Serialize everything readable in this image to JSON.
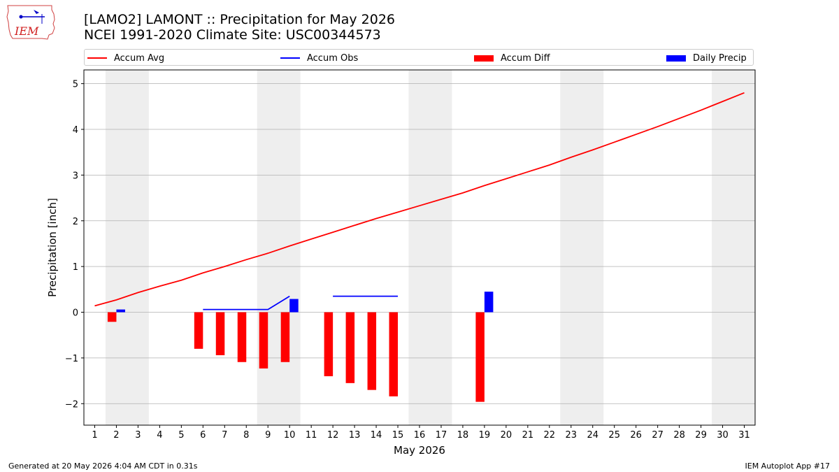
{
  "header": {
    "logo_text": "IEM",
    "title_line1": "[LAMO2] LAMONT :: Precipitation for May 2026",
    "title_line2": "NCEI 1991-2020 Climate Site: USC00344573"
  },
  "legend": {
    "placement": "top",
    "items": [
      {
        "label": "Accum Avg",
        "kind": "line",
        "color": "#ff0000"
      },
      {
        "label": "Accum Obs",
        "kind": "line",
        "color": "#0000ff"
      },
      {
        "label": "Accum Diff",
        "kind": "patch",
        "color": "#ff0000"
      },
      {
        "label": "Daily Precip",
        "kind": "patch",
        "color": "#0000ff"
      }
    ]
  },
  "footer": {
    "generated": "Generated at 20 May 2026 4:04 AM CDT in 0.31s",
    "app": "IEM Autoplot App #17"
  },
  "chart_data": {
    "type": "bar",
    "xlabel": "May 2026",
    "ylabel": "Precipitation [inch]",
    "xlim": [
      0.5,
      31.5
    ],
    "ylim": [
      -2.47,
      5.3
    ],
    "x_ticks": [
      1,
      2,
      3,
      4,
      5,
      6,
      7,
      8,
      9,
      10,
      11,
      12,
      13,
      14,
      15,
      16,
      17,
      18,
      19,
      20,
      21,
      22,
      23,
      24,
      25,
      26,
      27,
      28,
      29,
      30,
      31
    ],
    "y_ticks": [
      -2,
      -1,
      0,
      1,
      2,
      3,
      4,
      5
    ],
    "y_tick_labels": [
      "−2",
      "−1",
      "0",
      "1",
      "2",
      "3",
      "4",
      "5"
    ],
    "grid": "horizontal",
    "weekend_shading": [
      [
        1.5,
        3.5
      ],
      [
        8.5,
        10.5
      ],
      [
        15.5,
        17.5
      ],
      [
        22.5,
        24.5
      ],
      [
        29.5,
        31.5
      ]
    ],
    "colors": {
      "avg": "#ff0000",
      "obs": "#0000ff",
      "diff": "#ff0000",
      "daily": "#0000ff",
      "weekend": "#eeeeee",
      "grid": "#b0b0b0"
    },
    "series": [
      {
        "name": "Accum Avg",
        "type": "line",
        "x": [
          1,
          2,
          3,
          4,
          5,
          6,
          7,
          8,
          9,
          10,
          11,
          12,
          13,
          14,
          15,
          16,
          17,
          18,
          19,
          20,
          21,
          22,
          23,
          24,
          25,
          26,
          27,
          28,
          29,
          30,
          31
        ],
        "values": [
          0.14,
          0.27,
          0.43,
          0.57,
          0.7,
          0.86,
          1.0,
          1.15,
          1.29,
          1.45,
          1.6,
          1.75,
          1.9,
          2.05,
          2.19,
          2.33,
          2.47,
          2.61,
          2.77,
          2.92,
          3.07,
          3.22,
          3.39,
          3.55,
          3.72,
          3.89,
          4.06,
          4.24,
          4.42,
          4.61,
          4.8
        ]
      },
      {
        "name": "Accum Obs",
        "type": "line",
        "segments": [
          {
            "x": [
              6,
              7,
              8,
              9,
              10
            ],
            "values": [
              0.06,
              0.06,
              0.06,
              0.06,
              0.35
            ]
          },
          {
            "x": [
              12,
              13,
              14,
              15
            ],
            "values": [
              0.35,
              0.35,
              0.35,
              0.35
            ]
          }
        ]
      },
      {
        "name": "Accum Diff",
        "type": "bar",
        "x": [
          2,
          6,
          7,
          8,
          9,
          10,
          12,
          13,
          14,
          15,
          19
        ],
        "values": [
          -0.21,
          -0.8,
          -0.94,
          -1.09,
          -1.23,
          -1.09,
          -1.4,
          -1.55,
          -1.7,
          -1.84,
          -1.96
        ]
      },
      {
        "name": "Daily Precip",
        "type": "bar",
        "x": [
          2,
          10,
          19
        ],
        "values": [
          0.06,
          0.29,
          0.45
        ]
      }
    ]
  }
}
